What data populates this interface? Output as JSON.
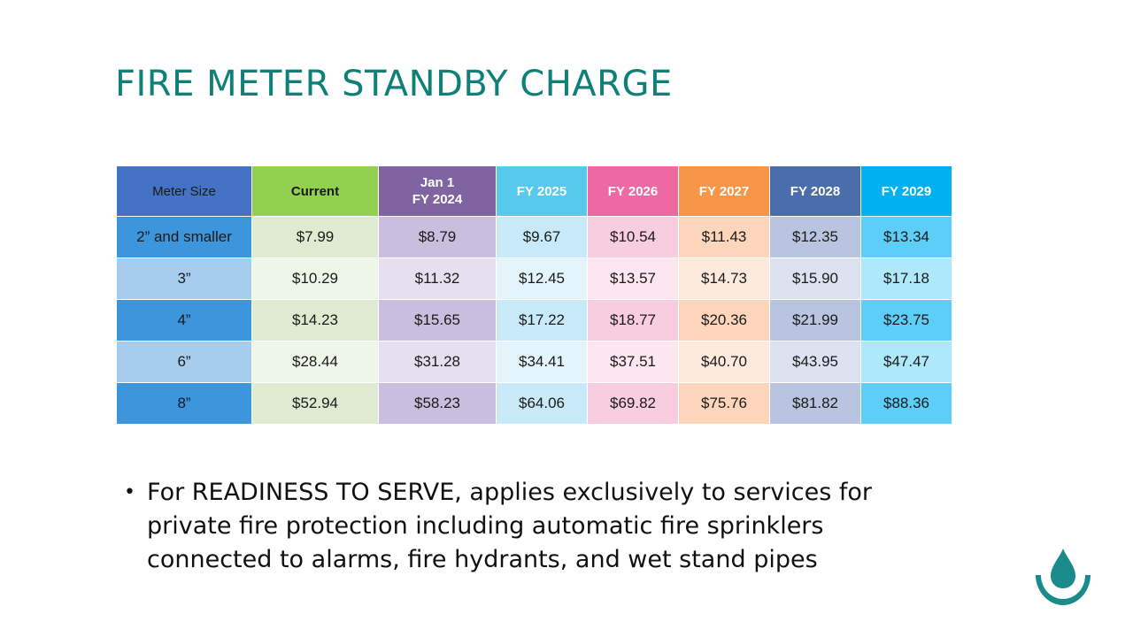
{
  "title": "FIRE METER STANDBY CHARGE",
  "table": {
    "headers": [
      {
        "line1": "Meter Size",
        "line2": ""
      },
      {
        "line1": "Current",
        "line2": ""
      },
      {
        "line1": "Jan 1",
        "line2": "FY 2024"
      },
      {
        "line1": "FY 2025",
        "line2": ""
      },
      {
        "line1": "FY 2026",
        "line2": ""
      },
      {
        "line1": "FY 2027",
        "line2": ""
      },
      {
        "line1": "FY 2028",
        "line2": ""
      },
      {
        "line1": "FY 2029",
        "line2": ""
      }
    ],
    "header_colors": [
      "#4472c4",
      "#92d050",
      "#8064a2",
      "#57c9ec",
      "#ee69a2",
      "#f79646",
      "#4a6eab",
      "#00b0f0"
    ],
    "band_colors": [
      [
        "#3d96dc",
        "#deebd1",
        "#cbbddd",
        "#c8e9f7",
        "#f8cde0",
        "#fcd5bb",
        "#b8c4e0",
        "#5ccef7"
      ],
      [
        "#a6cdee",
        "#eef5e9",
        "#e6dfef",
        "#e4f4fb",
        "#fce7f0",
        "#fdeadd",
        "#dce2f0",
        "#aee8fb"
      ]
    ],
    "rows": [
      [
        "2” and smaller",
        "$7.99",
        "$8.79",
        "$9.67",
        "$10.54",
        "$11.43",
        "$12.35",
        "$13.34"
      ],
      [
        "3”",
        "$10.29",
        "$11.32",
        "$12.45",
        "$13.57",
        "$14.73",
        "$15.90",
        "$17.18"
      ],
      [
        "4”",
        "$14.23",
        "$15.65",
        "$17.22",
        "$18.77",
        "$20.36",
        "$21.99",
        "$23.75"
      ],
      [
        "6”",
        "$28.44",
        "$31.28",
        "$34.41",
        "$37.51",
        "$40.70",
        "$43.95",
        "$47.47"
      ],
      [
        "8”",
        "$52.94",
        "$58.23",
        "$64.06",
        "$69.82",
        "$75.76",
        "$81.82",
        "$88.36"
      ]
    ]
  },
  "bullet": {
    "marker": "•",
    "text": "For READINESS TO SERVE, applies exclusively to services for private fire protection including automatic fire sprinklers connected to alarms, fire hydrants, and wet stand pipes"
  },
  "logo": {
    "icon": "water-drop-logo-icon",
    "color": "#1a8a8a"
  }
}
